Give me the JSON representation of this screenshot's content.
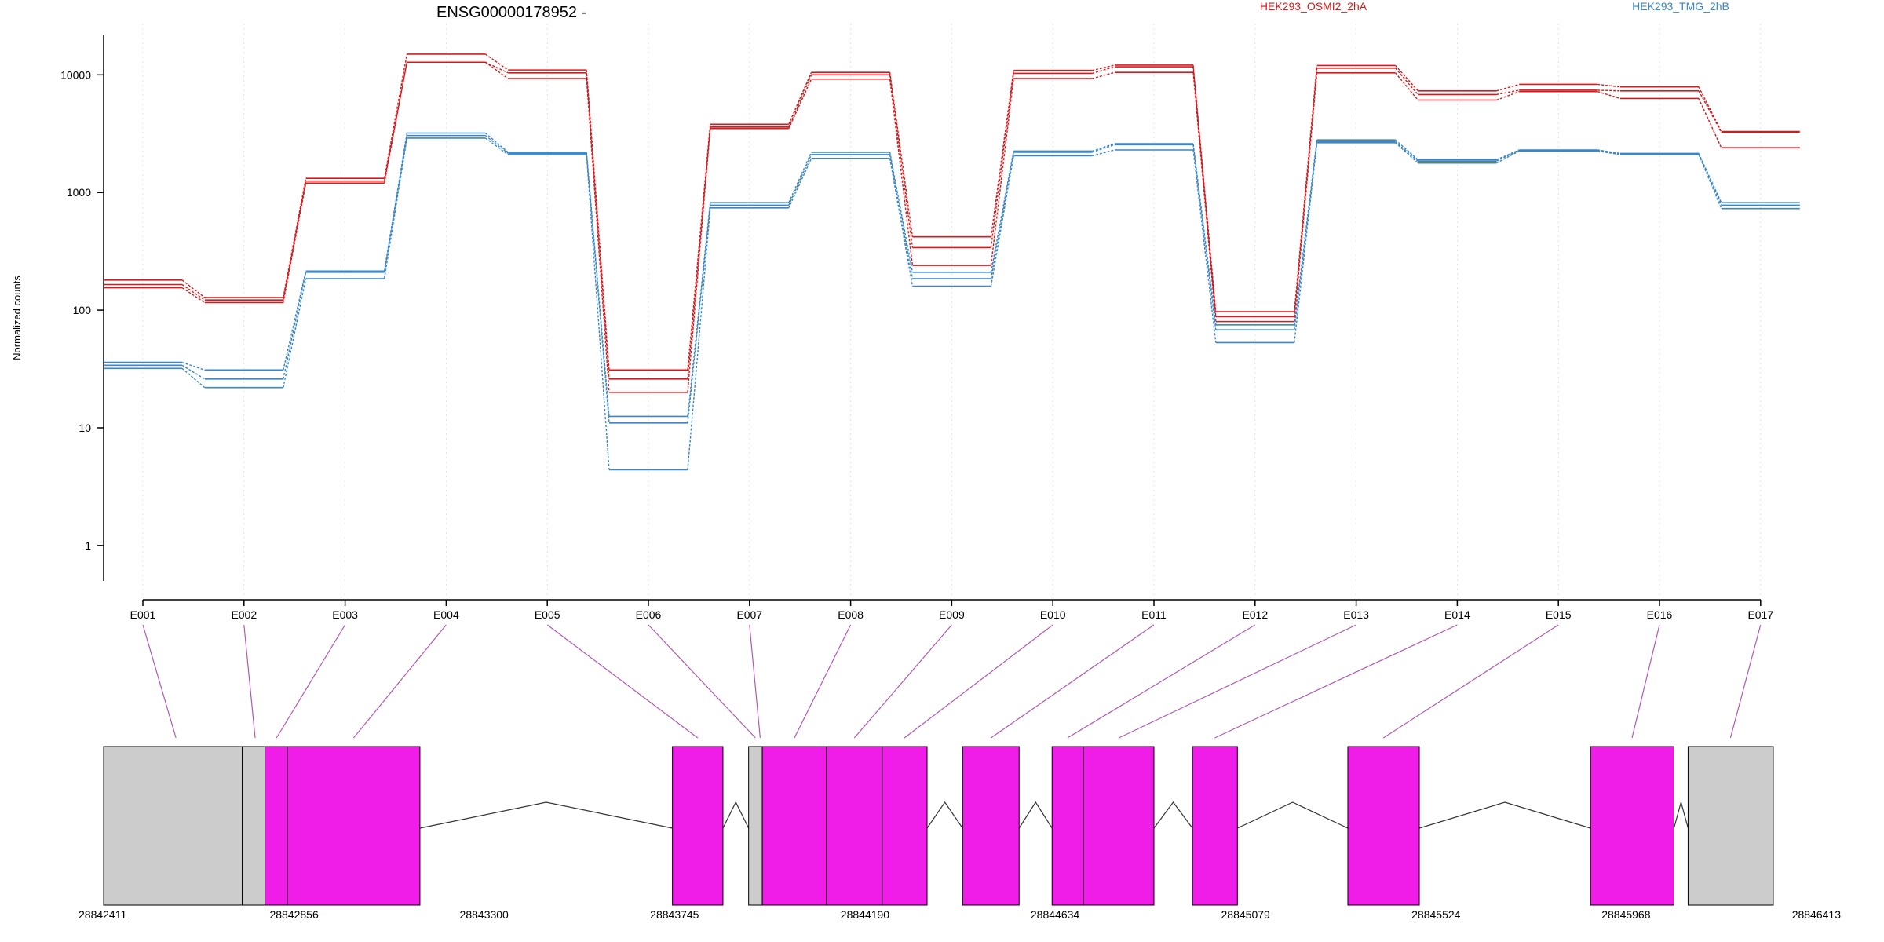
{
  "chart_data": {
    "type": "line",
    "title": "ENSG00000178952 -",
    "ylabel": "Normalized counts",
    "xlabel": "",
    "yscale": "log10",
    "ylim": [
      0.5,
      22000
    ],
    "yticks": [
      1,
      10,
      100,
      1000,
      10000
    ],
    "ytick_labels": [
      "1",
      "10",
      "100",
      "1000",
      "10000"
    ],
    "grid": "vertical dotted lines at exon positions",
    "legend_placement": "top-right",
    "categories": [
      "E001",
      "E002",
      "E003",
      "E004",
      "E005",
      "E006",
      "E007",
      "E008",
      "E009",
      "E010",
      "E011",
      "E012",
      "E013",
      "E014",
      "E015",
      "E016",
      "E017"
    ],
    "series": [
      {
        "name": "HEK293_OSMI2_2hA",
        "group": "HEK293_OSMI2_2hA",
        "color": "#d7191c",
        "values": [
          180,
          128,
          1320,
          15000,
          11000,
          31,
          3800,
          10500,
          420,
          10900,
          12100,
          97,
          12000,
          7300,
          8300,
          7900,
          3300
        ]
      },
      {
        "name": "",
        "group": "HEK293_OSMI2_2hA",
        "color": "#d7191c",
        "values": [
          165,
          122,
          1250,
          12800,
          10400,
          26,
          3600,
          10000,
          340,
          10300,
          11700,
          88,
          11400,
          6800,
          7400,
          7300,
          3250
        ]
      },
      {
        "name": "",
        "group": "HEK293_OSMI2_2hA",
        "color": "#d7191c",
        "values": [
          155,
          116,
          1200,
          12800,
          9300,
          20,
          3500,
          9200,
          240,
          9300,
          10500,
          80,
          10400,
          6100,
          7200,
          6300,
          2400
        ]
      },
      {
        "name": "HEK293_TMG_2hB",
        "group": "HEK293_TMG_2hB",
        "color": "#3a86c6",
        "values": [
          36,
          31,
          215,
          3200,
          2200,
          12.5,
          820,
          2200,
          210,
          2250,
          2600,
          75,
          2800,
          1900,
          2300,
          2150,
          820
        ]
      },
      {
        "name": "",
        "group": "HEK293_TMG_2hB",
        "color": "#3a86c6",
        "values": [
          34,
          26,
          210,
          3050,
          2150,
          11,
          780,
          2100,
          185,
          2200,
          2550,
          68,
          2700,
          1850,
          2280,
          2120,
          780
        ]
      },
      {
        "name": "",
        "group": "HEK293_TMG_2hB",
        "color": "#3a86c6",
        "values": [
          32,
          22,
          185,
          2900,
          2100,
          4.4,
          740,
          1950,
          160,
          2050,
          2300,
          53,
          2650,
          1780,
          2250,
          2100,
          730
        ]
      }
    ],
    "gene_model": {
      "coordinate_labels": [
        "28842411",
        "28842856",
        "28843300",
        "28843745",
        "28844190",
        "28844634",
        "28845079",
        "28845524",
        "28845968",
        "28846413"
      ],
      "coordinate_range": [
        28842411,
        28846413
      ],
      "exonic_color": "#f01ce8",
      "utr_color": "#cccccc",
      "link_color": "#b05ab0",
      "blocks": [
        {
          "start": 28842411,
          "end": 28842735,
          "kind": "utr"
        },
        {
          "start": 28842735,
          "end": 28842788,
          "kind": "utr"
        },
        {
          "start": 28842788,
          "end": 28842840,
          "kind": "exonic"
        },
        {
          "start": 28842840,
          "end": 28843150,
          "kind": "exonic"
        },
        {
          "start": 28843740,
          "end": 28843858,
          "kind": "exonic"
        },
        {
          "start": 28843918,
          "end": 28843950,
          "kind": "utr"
        },
        {
          "start": 28843950,
          "end": 28844100,
          "kind": "exonic"
        },
        {
          "start": 28844100,
          "end": 28844230,
          "kind": "exonic"
        },
        {
          "start": 28844230,
          "end": 28844335,
          "kind": "exonic"
        },
        {
          "start": 28844418,
          "end": 28844550,
          "kind": "exonic"
        },
        {
          "start": 28844627,
          "end": 28844700,
          "kind": "exonic"
        },
        {
          "start": 28844700,
          "end": 28844865,
          "kind": "exonic"
        },
        {
          "start": 28844955,
          "end": 28845060,
          "kind": "exonic"
        },
        {
          "start": 28845318,
          "end": 28845485,
          "kind": "exonic"
        },
        {
          "start": 28845885,
          "end": 28846080,
          "kind": "exonic"
        },
        {
          "start": 28846113,
          "end": 28846312,
          "kind": "utr"
        }
      ],
      "introns": [
        {
          "start": 28843150,
          "end": 28843740
        },
        {
          "start": 28843858,
          "end": 28843918
        },
        {
          "start": 28844335,
          "end": 28844418
        },
        {
          "start": 28844550,
          "end": 28844627
        },
        {
          "start": 28844865,
          "end": 28844955
        },
        {
          "start": 28845060,
          "end": 28845318
        },
        {
          "start": 28845485,
          "end": 28845885
        },
        {
          "start": 28846080,
          "end": 28846113
        }
      ],
      "exon_links": [
        {
          "exon": "E001",
          "coordinate": 28842580
        },
        {
          "exon": "E002",
          "coordinate": 28842765
        },
        {
          "exon": "E003",
          "coordinate": 28842815
        },
        {
          "exon": "E004",
          "coordinate": 28842995
        },
        {
          "exon": "E005",
          "coordinate": 28843799
        },
        {
          "exon": "E006",
          "coordinate": 28843934
        },
        {
          "exon": "E007",
          "coordinate": 28843945
        },
        {
          "exon": "E008",
          "coordinate": 28844025
        },
        {
          "exon": "E009",
          "coordinate": 28844165
        },
        {
          "exon": "E010",
          "coordinate": 28844282
        },
        {
          "exon": "E011",
          "coordinate": 28844484
        },
        {
          "exon": "E012",
          "coordinate": 28844663
        },
        {
          "exon": "E013",
          "coordinate": 28844783
        },
        {
          "exon": "E014",
          "coordinate": 28845007
        },
        {
          "exon": "E015",
          "coordinate": 28845401
        },
        {
          "exon": "E016",
          "coordinate": 28845982
        },
        {
          "exon": "E017",
          "coordinate": 28846212
        }
      ]
    }
  }
}
